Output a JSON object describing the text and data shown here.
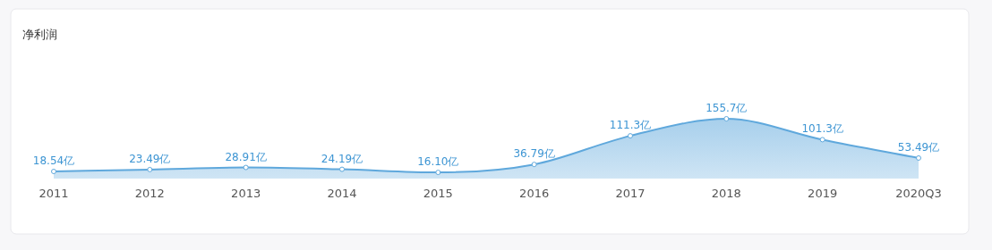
{
  "chart_data": {
    "type": "area",
    "title": "净利润",
    "categories": [
      "2011",
      "2012",
      "2013",
      "2014",
      "2015",
      "2016",
      "2017",
      "2018",
      "2019",
      "2020Q3"
    ],
    "series": [
      {
        "color": "#5fa8dc",
        "values": [
          18.54,
          23.49,
          28.91,
          24.19,
          16.1,
          36.79,
          111.3,
          155.7,
          101.3,
          53.49
        ],
        "value_labels": [
          "18.54亿",
          "23.49亿",
          "28.91亿",
          "24.19亿",
          "16.10亿",
          "36.79亿",
          "111.3亿",
          "155.7亿",
          "101.3亿",
          "53.49亿"
        ]
      }
    ],
    "marker": "circle"
  }
}
